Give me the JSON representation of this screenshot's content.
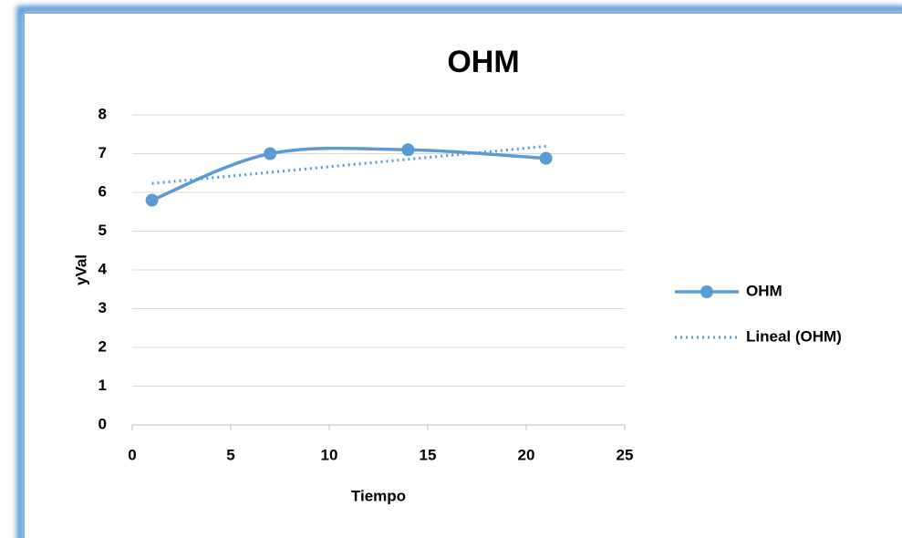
{
  "chart_data": {
    "type": "scatter",
    "title": "OHM",
    "xlabel": "Tiempo",
    "ylabel": "yVal",
    "series": [
      {
        "name": "OHM",
        "color": "#5b9bd5",
        "x": [
          1,
          7,
          14,
          21
        ],
        "values": [
          5.8,
          7.0,
          7.1,
          6.88
        ],
        "smooth": true,
        "markers": true
      },
      {
        "name": "Lineal (OHM)",
        "color": "#5b9bd5",
        "x": [
          1,
          21
        ],
        "values": [
          6.23,
          7.19
        ],
        "dotted": true,
        "markers": false
      }
    ],
    "xlim": [
      0,
      25
    ],
    "xticks": [
      0,
      5,
      10,
      15,
      20,
      25
    ],
    "ylim": [
      0,
      8
    ],
    "yticks": [
      0,
      1,
      2,
      3,
      4,
      5,
      6,
      7,
      8
    ],
    "grid": true,
    "legend": "right"
  }
}
